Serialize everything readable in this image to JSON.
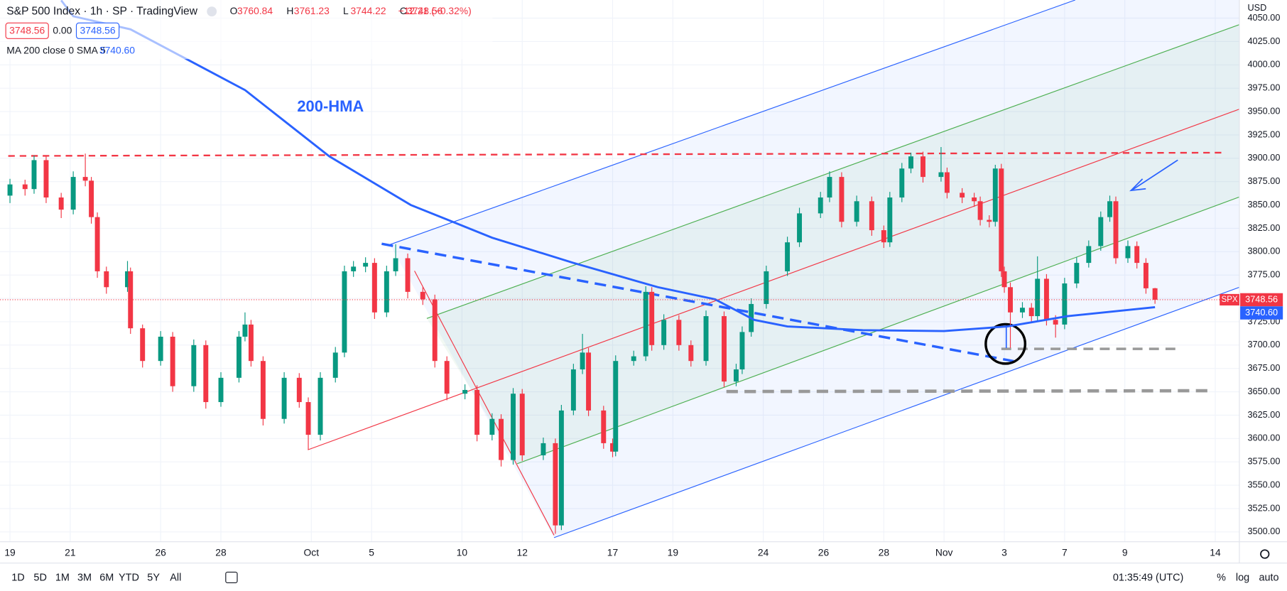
{
  "header": {
    "title": "S&P 500 Index · 1h · SP · TradingView",
    "bid": "3748.56",
    "spread": "0.00",
    "ask": "3748.56",
    "change": "−12.21 (−0.32%)",
    "ohlc_letters": [
      "O",
      "H",
      "L",
      "C"
    ]
  },
  "toolbar": {
    "ranges": [
      "1D",
      "5D",
      "1M",
      "3M",
      "6M",
      "YTD",
      "5Y",
      "All"
    ],
    "clock": "01:35:49 (UTC)",
    "percent": "%",
    "log": "log",
    "auto": "auto",
    "currency": "USD"
  },
  "chart_data": {
    "type": "candlestick",
    "symbol": "SPX",
    "up_color": "#089981",
    "down_color": "#f23645",
    "grid": true,
    "annotation": "200-HMA",
    "xlim": [
      -0.33,
      40.8
    ],
    "ylim": [
      3489.5,
      4069.4
    ],
    "xticks": [
      {
        "value": 0,
        "label": "19"
      },
      {
        "value": 2,
        "label": "21"
      },
      {
        "value": 5,
        "label": "26"
      },
      {
        "value": 7,
        "label": "28"
      },
      {
        "value": 10,
        "label": "Oct"
      },
      {
        "value": 12,
        "label": "5"
      },
      {
        "value": 15,
        "label": "10"
      },
      {
        "value": 17,
        "label": "12"
      },
      {
        "value": 20,
        "label": "17"
      },
      {
        "value": 22,
        "label": "19"
      },
      {
        "value": 25,
        "label": "24"
      },
      {
        "value": 27,
        "label": "26"
      },
      {
        "value": 29,
        "label": "28"
      },
      {
        "value": 31,
        "label": "Nov"
      },
      {
        "value": 33,
        "label": "3"
      },
      {
        "value": 35,
        "label": "7"
      },
      {
        "value": 37,
        "label": "9"
      },
      {
        "value": 40,
        "label": "14"
      }
    ],
    "yticks": [
      {
        "value": 3500,
        "label": "3500.00"
      },
      {
        "value": 3525,
        "label": "3525.00"
      },
      {
        "value": 3550,
        "label": "3550.00"
      },
      {
        "value": 3575,
        "label": "3575.00"
      },
      {
        "value": 3600,
        "label": "3600.00"
      },
      {
        "value": 3625,
        "label": "3625.00"
      },
      {
        "value": 3650,
        "label": "3650.00"
      },
      {
        "value": 3675,
        "label": "3675.00"
      },
      {
        "value": 3700,
        "label": "3700.00"
      },
      {
        "value": 3725,
        "label": "3725.00"
      },
      {
        "value": 3750,
        "label": "3750.00"
      },
      {
        "value": 3775,
        "label": "3775.00"
      },
      {
        "value": 3800,
        "label": "3800.00"
      },
      {
        "value": 3825,
        "label": "3825.00"
      },
      {
        "value": 3850,
        "label": "3850.00"
      },
      {
        "value": 3875,
        "label": "3875.00"
      },
      {
        "value": 3900,
        "label": "3900.00"
      },
      {
        "value": 3925,
        "label": "3925.00"
      },
      {
        "value": 3950,
        "label": "3950.00"
      },
      {
        "value": 3975,
        "label": "3975.00"
      },
      {
        "value": 4000,
        "label": "4000.00"
      },
      {
        "value": 4025,
        "label": "4025.00"
      },
      {
        "value": 4050,
        "label": "4050.00"
      }
    ],
    "candles": [
      {
        "x": 0,
        "open": 3860,
        "high": 3878,
        "low": 3852,
        "close": 3872
      },
      {
        "x": 0.5,
        "open": 3872,
        "high": 3877,
        "low": 3860,
        "close": 3867
      },
      {
        "x": 0.8,
        "open": 3867,
        "high": 3903,
        "low": 3862,
        "close": 3898
      },
      {
        "x": 1.2,
        "open": 3898,
        "high": 3902,
        "low": 3852,
        "close": 3858
      },
      {
        "x": 1.7,
        "open": 3858,
        "high": 3863,
        "low": 3836,
        "close": 3845
      },
      {
        "x": 2.1,
        "open": 3845,
        "high": 3886,
        "low": 3840,
        "close": 3880
      },
      {
        "x": 2.5,
        "open": 3880,
        "high": 3905,
        "low": 3870,
        "close": 3876
      },
      {
        "x": 2.7,
        "open": 3876,
        "high": 3880,
        "low": 3830,
        "close": 3837
      },
      {
        "x": 2.9,
        "open": 3837,
        "high": 3842,
        "low": 3772,
        "close": 3779
      },
      {
        "x": 3.2,
        "open": 3779,
        "high": 3784,
        "low": 3755,
        "close": 3762
      },
      {
        "x": 3.9,
        "open": 3762,
        "high": 3790,
        "low": 3757,
        "close": 3779
      },
      {
        "x": 4.0,
        "open": 3779,
        "high": 3783,
        "low": 3712,
        "close": 3718
      },
      {
        "x": 4.4,
        "open": 3718,
        "high": 3722,
        "low": 3676,
        "close": 3683
      },
      {
        "x": 5.0,
        "open": 3683,
        "high": 3715,
        "low": 3678,
        "close": 3709
      },
      {
        "x": 5.4,
        "open": 3709,
        "high": 3714,
        "low": 3650,
        "close": 3656
      },
      {
        "x": 6.1,
        "open": 3656,
        "high": 3706,
        "low": 3650,
        "close": 3700
      },
      {
        "x": 6.5,
        "open": 3700,
        "high": 3705,
        "low": 3632,
        "close": 3639
      },
      {
        "x": 7.0,
        "open": 3639,
        "high": 3671,
        "low": 3634,
        "close": 3665
      },
      {
        "x": 7.6,
        "open": 3665,
        "high": 3715,
        "low": 3660,
        "close": 3709
      },
      {
        "x": 7.8,
        "open": 3709,
        "high": 3735,
        "low": 3704,
        "close": 3722
      },
      {
        "x": 8.0,
        "open": 3722,
        "high": 3727,
        "low": 3677,
        "close": 3683
      },
      {
        "x": 8.4,
        "open": 3683,
        "high": 3688,
        "low": 3614,
        "close": 3621
      },
      {
        "x": 9.1,
        "open": 3621,
        "high": 3671,
        "low": 3616,
        "close": 3665
      },
      {
        "x": 9.6,
        "open": 3665,
        "high": 3670,
        "low": 3633,
        "close": 3639
      },
      {
        "x": 9.9,
        "open": 3639,
        "high": 3644,
        "low": 3588,
        "close": 3604
      },
      {
        "x": 10.3,
        "open": 3604,
        "high": 3671,
        "low": 3598,
        "close": 3665
      },
      {
        "x": 10.8,
        "open": 3665,
        "high": 3698,
        "low": 3660,
        "close": 3692
      },
      {
        "x": 11.1,
        "open": 3692,
        "high": 3785,
        "low": 3687,
        "close": 3779
      },
      {
        "x": 11.4,
        "open": 3779,
        "high": 3790,
        "low": 3773,
        "close": 3784
      },
      {
        "x": 11.8,
        "open": 3784,
        "high": 3794,
        "low": 3778,
        "close": 3788
      },
      {
        "x": 12.1,
        "open": 3788,
        "high": 3793,
        "low": 3728,
        "close": 3735
      },
      {
        "x": 12.5,
        "open": 3735,
        "high": 3785,
        "low": 3730,
        "close": 3779
      },
      {
        "x": 12.8,
        "open": 3779,
        "high": 3808,
        "low": 3774,
        "close": 3793
      },
      {
        "x": 13.2,
        "open": 3793,
        "high": 3798,
        "low": 3750,
        "close": 3757
      },
      {
        "x": 13.7,
        "open": 3757,
        "high": 3762,
        "low": 3743,
        "close": 3749
      },
      {
        "x": 14.1,
        "open": 3749,
        "high": 3754,
        "low": 3676,
        "close": 3683
      },
      {
        "x": 14.5,
        "open": 3683,
        "high": 3688,
        "low": 3641,
        "close": 3648
      },
      {
        "x": 15.1,
        "open": 3648,
        "high": 3658,
        "low": 3642,
        "close": 3652
      },
      {
        "x": 15.5,
        "open": 3652,
        "high": 3657,
        "low": 3597,
        "close": 3604
      },
      {
        "x": 16.0,
        "open": 3604,
        "high": 3627,
        "low": 3598,
        "close": 3621
      },
      {
        "x": 16.3,
        "open": 3621,
        "high": 3626,
        "low": 3570,
        "close": 3577
      },
      {
        "x": 16.7,
        "open": 3577,
        "high": 3654,
        "low": 3572,
        "close": 3648
      },
      {
        "x": 17.0,
        "open": 3648,
        "high": 3653,
        "low": 3576,
        "close": 3582
      },
      {
        "x": 17.7,
        "open": 3582,
        "high": 3601,
        "low": 3577,
        "close": 3595
      },
      {
        "x": 18.1,
        "open": 3595,
        "high": 3600,
        "low": 3498,
        "close": 3507
      },
      {
        "x": 18.3,
        "open": 3507,
        "high": 3636,
        "low": 3502,
        "close": 3630
      },
      {
        "x": 18.7,
        "open": 3630,
        "high": 3680,
        "low": 3625,
        "close": 3674
      },
      {
        "x": 19.0,
        "open": 3674,
        "high": 3712,
        "low": 3669,
        "close": 3692
      },
      {
        "x": 19.2,
        "open": 3692,
        "high": 3697,
        "low": 3624,
        "close": 3630
      },
      {
        "x": 19.7,
        "open": 3630,
        "high": 3635,
        "low": 3589,
        "close": 3595
      },
      {
        "x": 20.0,
        "open": 3595,
        "high": 3600,
        "low": 3580,
        "close": 3586
      },
      {
        "x": 20.1,
        "open": 3586,
        "high": 3689,
        "low": 3581,
        "close": 3683
      },
      {
        "x": 20.7,
        "open": 3683,
        "high": 3694,
        "low": 3678,
        "close": 3688
      },
      {
        "x": 21.1,
        "open": 3688,
        "high": 3763,
        "low": 3683,
        "close": 3757
      },
      {
        "x": 21.3,
        "open": 3757,
        "high": 3762,
        "low": 3694,
        "close": 3700
      },
      {
        "x": 21.7,
        "open": 3700,
        "high": 3733,
        "low": 3695,
        "close": 3727
      },
      {
        "x": 22.2,
        "open": 3727,
        "high": 3732,
        "low": 3694,
        "close": 3700
      },
      {
        "x": 22.6,
        "open": 3700,
        "high": 3705,
        "low": 3677,
        "close": 3683
      },
      {
        "x": 23.1,
        "open": 3683,
        "high": 3737,
        "low": 3678,
        "close": 3731
      },
      {
        "x": 23.7,
        "open": 3731,
        "high": 3736,
        "low": 3655,
        "close": 3661
      },
      {
        "x": 24.1,
        "open": 3661,
        "high": 3680,
        "low": 3656,
        "close": 3674
      },
      {
        "x": 24.3,
        "open": 3674,
        "high": 3720,
        "low": 3669,
        "close": 3714
      },
      {
        "x": 24.6,
        "open": 3714,
        "high": 3750,
        "low": 3709,
        "close": 3744
      },
      {
        "x": 25.1,
        "open": 3744,
        "high": 3785,
        "low": 3739,
        "close": 3779
      },
      {
        "x": 25.8,
        "open": 3779,
        "high": 3816,
        "low": 3774,
        "close": 3810
      },
      {
        "x": 26.2,
        "open": 3810,
        "high": 3847,
        "low": 3805,
        "close": 3841
      },
      {
        "x": 26.9,
        "open": 3841,
        "high": 3864,
        "low": 3836,
        "close": 3858
      },
      {
        "x": 27.2,
        "open": 3858,
        "high": 3886,
        "low": 3853,
        "close": 3880
      },
      {
        "x": 27.6,
        "open": 3880,
        "high": 3885,
        "low": 3826,
        "close": 3832
      },
      {
        "x": 28.1,
        "open": 3832,
        "high": 3860,
        "low": 3827,
        "close": 3854
      },
      {
        "x": 28.6,
        "open": 3854,
        "high": 3859,
        "low": 3817,
        "close": 3823
      },
      {
        "x": 29.0,
        "open": 3823,
        "high": 3828,
        "low": 3804,
        "close": 3810
      },
      {
        "x": 29.2,
        "open": 3810,
        "high": 3864,
        "low": 3805,
        "close": 3858
      },
      {
        "x": 29.6,
        "open": 3858,
        "high": 3895,
        "low": 3853,
        "close": 3889
      },
      {
        "x": 29.9,
        "open": 3889,
        "high": 3906,
        "low": 3884,
        "close": 3902
      },
      {
        "x": 30.3,
        "open": 3902,
        "high": 3907,
        "low": 3874,
        "close": 3880
      },
      {
        "x": 30.9,
        "open": 3880,
        "high": 3912,
        "low": 3875,
        "close": 3885
      },
      {
        "x": 31.1,
        "open": 3885,
        "high": 3890,
        "low": 3857,
        "close": 3863
      },
      {
        "x": 31.6,
        "open": 3863,
        "high": 3868,
        "low": 3852,
        "close": 3858
      },
      {
        "x": 32.0,
        "open": 3858,
        "high": 3863,
        "low": 3848,
        "close": 3854
      },
      {
        "x": 32.2,
        "open": 3854,
        "high": 3859,
        "low": 3828,
        "close": 3834
      },
      {
        "x": 32.5,
        "open": 3834,
        "high": 3839,
        "low": 3826,
        "close": 3832
      },
      {
        "x": 32.7,
        "open": 3832,
        "high": 3893,
        "low": 3827,
        "close": 3889
      },
      {
        "x": 32.9,
        "open": 3889,
        "high": 3894,
        "low": 3773,
        "close": 3779
      },
      {
        "x": 33.0,
        "open": 3779,
        "high": 3784,
        "low": 3756,
        "close": 3762
      },
      {
        "x": 33.2,
        "open": 3762,
        "high": 3767,
        "low": 3697,
        "close": 3735
      },
      {
        "x": 33.6,
        "open": 3735,
        "high": 3746,
        "low": 3729,
        "close": 3740
      },
      {
        "x": 33.9,
        "open": 3740,
        "high": 3745,
        "low": 3725,
        "close": 3731
      },
      {
        "x": 34.1,
        "open": 3731,
        "high": 3795,
        "low": 3726,
        "close": 3771
      },
      {
        "x": 34.4,
        "open": 3771,
        "high": 3776,
        "low": 3721,
        "close": 3727
      },
      {
        "x": 34.7,
        "open": 3727,
        "high": 3732,
        "low": 3708,
        "close": 3722
      },
      {
        "x": 35.0,
        "open": 3722,
        "high": 3772,
        "low": 3717,
        "close": 3766
      },
      {
        "x": 35.4,
        "open": 3766,
        "high": 3794,
        "low": 3761,
        "close": 3788
      },
      {
        "x": 35.8,
        "open": 3788,
        "high": 3812,
        "low": 3783,
        "close": 3806
      },
      {
        "x": 36.2,
        "open": 3806,
        "high": 3843,
        "low": 3801,
        "close": 3837
      },
      {
        "x": 36.5,
        "open": 3837,
        "high": 3860,
        "low": 3832,
        "close": 3854
      },
      {
        "x": 36.7,
        "open": 3854,
        "high": 3859,
        "low": 3787,
        "close": 3793
      },
      {
        "x": 37.1,
        "open": 3793,
        "high": 3812,
        "low": 3788,
        "close": 3806
      },
      {
        "x": 37.4,
        "open": 3806,
        "high": 3811,
        "low": 3782,
        "close": 3788
      },
      {
        "x": 37.7,
        "open": 3788,
        "high": 3793,
        "low": 3755,
        "close": 3760.77
      },
      {
        "x": 38.0,
        "open": 3760.84,
        "high": 3761.23,
        "low": 3744.22,
        "close": 3748.56
      }
    ],
    "ma": {
      "label": "MA 200 close 0 SMA 5",
      "color": "#2962ff",
      "x": [
        1.7,
        2.1,
        4.0,
        7.8,
        10.6,
        13.3,
        16.0,
        18.7,
        21.5,
        23.4,
        24.7,
        25.8,
        28.3,
        31.0,
        33.1,
        35.1,
        38.0
      ],
      "values": [
        4069,
        4052,
        4038,
        3973,
        3902,
        3850,
        3815,
        3788,
        3762,
        3749,
        3727,
        3720,
        3716,
        3715,
        3720,
        3731,
        3740.6
      ]
    }
  }
}
